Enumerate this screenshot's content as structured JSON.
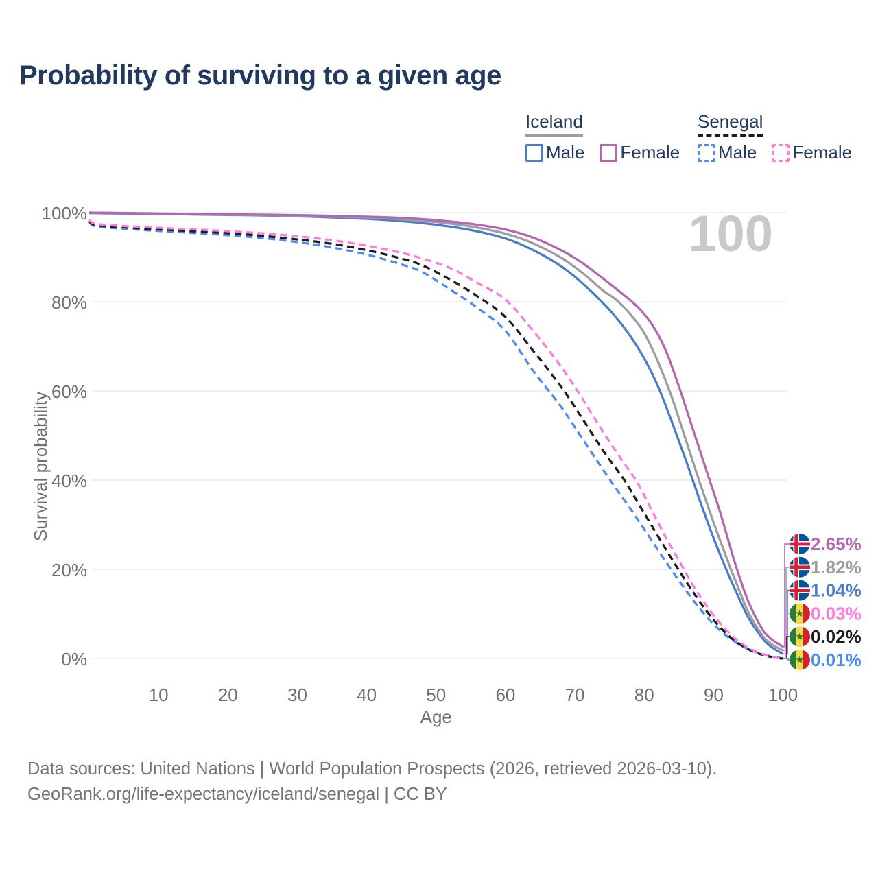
{
  "title": "Probability of surviving to a given age",
  "colors": {
    "title_text": "#21395c",
    "legend_text": "#21395c",
    "axis_text": "#6f6f6f",
    "grid": "#eaeaea",
    "annotation": "#c9c9c9",
    "footer_text": "#757575"
  },
  "legend": {
    "groups": [
      {
        "label": "Iceland",
        "underline_style": "solid",
        "underline_color": "#9d9da1",
        "items": [
          {
            "label": "Male",
            "color": "#4c7cc9",
            "dashed": false
          },
          {
            "label": "Female",
            "color": "#b168b1",
            "dashed": false
          }
        ]
      },
      {
        "label": "Senegal",
        "underline_style": "dashed",
        "underline_color": "#1c1c1c",
        "items": [
          {
            "label": "Male",
            "color": "#4c8cf0",
            "dashed": true
          },
          {
            "label": "Female",
            "color": "#ff7ade",
            "dashed": true
          }
        ]
      }
    ]
  },
  "chart_data": {
    "type": "line",
    "title": "Probability of surviving to a given age",
    "xlabel": "Age",
    "ylabel": "Survival probability",
    "xlim": [
      0,
      100
    ],
    "ylim": [
      0,
      100
    ],
    "grid": "horizontal",
    "x_ticks": [
      10,
      20,
      30,
      40,
      50,
      60,
      70,
      80,
      90,
      100
    ],
    "y_ticks": [
      {
        "value": 100,
        "label": "100%"
      },
      {
        "value": 80,
        "label": "80%"
      },
      {
        "value": 60,
        "label": "60%"
      },
      {
        "value": 40,
        "label": "40%"
      },
      {
        "value": 20,
        "label": "20%"
      },
      {
        "value": 0,
        "label": "0%"
      }
    ],
    "annotation": "100",
    "legend_position": "top-right",
    "series": [
      {
        "name": "Iceland Female",
        "country": "Iceland",
        "sex": "Female",
        "flag": "iceland",
        "color": "#b168b1",
        "dashed": false,
        "end_value": 2.65,
        "end_label": "2.65%",
        "points": [
          [
            0,
            100
          ],
          [
            10,
            99.8
          ],
          [
            20,
            99.65
          ],
          [
            30,
            99.45
          ],
          [
            40,
            99.1
          ],
          [
            45,
            98.8
          ],
          [
            50,
            98.3
          ],
          [
            55,
            97.5
          ],
          [
            60,
            96.2
          ],
          [
            64,
            94.4
          ],
          [
            68,
            91.6
          ],
          [
            71,
            88.8
          ],
          [
            74,
            85.3
          ],
          [
            77,
            81.6
          ],
          [
            79,
            78.9
          ],
          [
            81,
            75.2
          ],
          [
            83,
            69.5
          ],
          [
            85,
            61
          ],
          [
            87,
            51.5
          ],
          [
            89,
            42
          ],
          [
            91,
            32.5
          ],
          [
            93,
            21.8
          ],
          [
            95,
            12.8
          ],
          [
            97,
            6.6
          ],
          [
            98,
            4.8
          ],
          [
            99,
            3.6
          ],
          [
            100,
            2.65
          ]
        ]
      },
      {
        "name": "Iceland",
        "country": "Iceland",
        "sex": "Both sexes",
        "flag": "iceland",
        "color": "#9d9da1",
        "dashed": false,
        "end_value": 1.82,
        "end_label": "1.82%",
        "points": [
          [
            0,
            100
          ],
          [
            10,
            99.75
          ],
          [
            20,
            99.55
          ],
          [
            30,
            99.3
          ],
          [
            40,
            98.9
          ],
          [
            45,
            98.5
          ],
          [
            50,
            97.9
          ],
          [
            55,
            96.9
          ],
          [
            60,
            95.3
          ],
          [
            64,
            93.1
          ],
          [
            68,
            89.9
          ],
          [
            71,
            86.6
          ],
          [
            74,
            82.6
          ],
          [
            76,
            80.4
          ],
          [
            78,
            77.2
          ],
          [
            80,
            73
          ],
          [
            82,
            66.5
          ],
          [
            84,
            58.5
          ],
          [
            86,
            49
          ],
          [
            88,
            39.5
          ],
          [
            90,
            30.5
          ],
          [
            92,
            22
          ],
          [
            93,
            18
          ],
          [
            95,
            10.4
          ],
          [
            97,
            5.2
          ],
          [
            98,
            3.7
          ],
          [
            99,
            2.6
          ],
          [
            100,
            1.82
          ]
        ]
      },
      {
        "name": "Iceland Male",
        "country": "Iceland",
        "sex": "Male",
        "flag": "iceland",
        "color": "#4c7cc9",
        "dashed": false,
        "end_value": 1.04,
        "end_label": "1.04%",
        "points": [
          [
            0,
            99.9
          ],
          [
            10,
            99.7
          ],
          [
            20,
            99.5
          ],
          [
            30,
            99.2
          ],
          [
            40,
            98.6
          ],
          [
            45,
            98.1
          ],
          [
            50,
            97.3
          ],
          [
            55,
            96.1
          ],
          [
            60,
            94.2
          ],
          [
            64,
            91.6
          ],
          [
            68,
            88
          ],
          [
            71,
            84.3
          ],
          [
            74,
            79.8
          ],
          [
            76,
            76.4
          ],
          [
            78,
            72.3
          ],
          [
            80,
            67.3
          ],
          [
            82,
            61
          ],
          [
            84,
            53
          ],
          [
            86,
            44.5
          ],
          [
            88,
            35.5
          ],
          [
            90,
            27
          ],
          [
            92,
            19.3
          ],
          [
            93,
            15.8
          ],
          [
            95,
            9.2
          ],
          [
            97,
            4.6
          ],
          [
            98,
            3
          ],
          [
            99,
            1.9
          ],
          [
            100,
            1.04
          ]
        ]
      },
      {
        "name": "Senegal Female",
        "country": "Senegal",
        "sex": "Female",
        "flag": "senegal",
        "color": "#ff7ade",
        "dashed": true,
        "end_value": 0.03,
        "end_label": "0.03%",
        "points": [
          [
            0,
            98.3
          ],
          [
            1,
            97.5
          ],
          [
            5,
            97
          ],
          [
            10,
            96.6
          ],
          [
            15,
            96.25
          ],
          [
            20,
            95.85
          ],
          [
            25,
            95.35
          ],
          [
            30,
            94.7
          ],
          [
            35,
            93.8
          ],
          [
            40,
            92.6
          ],
          [
            45,
            91
          ],
          [
            48,
            89.7
          ],
          [
            52,
            87.6
          ],
          [
            56,
            84.2
          ],
          [
            60,
            80.5
          ],
          [
            64,
            73.5
          ],
          [
            68,
            65.5
          ],
          [
            71,
            58.5
          ],
          [
            74,
            51
          ],
          [
            77,
            44
          ],
          [
            79,
            39.5
          ],
          [
            81,
            33.5
          ],
          [
            83,
            27.5
          ],
          [
            85,
            22
          ],
          [
            87,
            16.5
          ],
          [
            89,
            11.8
          ],
          [
            91,
            7.8
          ],
          [
            93,
            4.6
          ],
          [
            95,
            2.4
          ],
          [
            97,
            1
          ],
          [
            99,
            0.2
          ],
          [
            100,
            0.03
          ]
        ]
      },
      {
        "name": "Senegal",
        "country": "Senegal",
        "sex": "Both sexes",
        "flag": "senegal",
        "color": "#1c1c1c",
        "dashed": true,
        "end_value": 0.02,
        "end_label": "0.02%",
        "points": [
          [
            0,
            98.1
          ],
          [
            1,
            97.2
          ],
          [
            5,
            96.7
          ],
          [
            10,
            96.25
          ],
          [
            15,
            95.85
          ],
          [
            20,
            95.4
          ],
          [
            25,
            94.8
          ],
          [
            30,
            94
          ],
          [
            35,
            93
          ],
          [
            40,
            91.6
          ],
          [
            45,
            89.7
          ],
          [
            48,
            88.2
          ],
          [
            52,
            85
          ],
          [
            56,
            81.2
          ],
          [
            60,
            76.6
          ],
          [
            64,
            69
          ],
          [
            68,
            61
          ],
          [
            71,
            54
          ],
          [
            74,
            46.8
          ],
          [
            77,
            40.3
          ],
          [
            79,
            35.2
          ],
          [
            81,
            30
          ],
          [
            83,
            24.8
          ],
          [
            85,
            19.8
          ],
          [
            87,
            15
          ],
          [
            89,
            10.6
          ],
          [
            91,
            6.9
          ],
          [
            93,
            4
          ],
          [
            95,
            2.1
          ],
          [
            97,
            0.85
          ],
          [
            99,
            0.15
          ],
          [
            100,
            0.02
          ]
        ]
      },
      {
        "name": "Senegal Male",
        "country": "Senegal",
        "sex": "Male",
        "flag": "senegal",
        "color": "#4c8cf0",
        "dashed": true,
        "end_value": 0.01,
        "end_label": "0.01%",
        "points": [
          [
            0,
            97.9
          ],
          [
            1,
            96.9
          ],
          [
            5,
            96.4
          ],
          [
            10,
            95.9
          ],
          [
            15,
            95.45
          ],
          [
            20,
            94.95
          ],
          [
            25,
            94.3
          ],
          [
            30,
            93.4
          ],
          [
            35,
            92.2
          ],
          [
            40,
            90.6
          ],
          [
            45,
            88.4
          ],
          [
            48,
            86.7
          ],
          [
            52,
            82.8
          ],
          [
            56,
            78.6
          ],
          [
            60,
            73.5
          ],
          [
            64,
            64.5
          ],
          [
            68,
            56.5
          ],
          [
            71,
            49.5
          ],
          [
            74,
            42.5
          ],
          [
            76,
            38
          ],
          [
            78,
            33.6
          ],
          [
            80,
            29
          ],
          [
            82,
            24.3
          ],
          [
            84,
            19.7
          ],
          [
            86,
            15.3
          ],
          [
            88,
            11.2
          ],
          [
            90,
            7.7
          ],
          [
            92,
            4.9
          ],
          [
            94,
            2.9
          ],
          [
            96,
            1.5
          ],
          [
            98,
            0.6
          ],
          [
            99,
            0.3
          ],
          [
            100,
            0.01
          ]
        ]
      }
    ],
    "icons": {
      "iceland_flag": {
        "blue": "#02529C",
        "white": "#ffffff",
        "red": "#DC1E35"
      },
      "senegal_flag": {
        "green": "#2d7a35",
        "yellow": "#f7d948",
        "red": "#d6202e",
        "star": "#2d7a35"
      }
    }
  },
  "footer": {
    "line1": "Data sources: United Nations | World Population Prospects (2026, retrieved 2026-03-10).",
    "line2": "GeoRank.org/life-expectancy/iceland/senegal | CC BY"
  }
}
